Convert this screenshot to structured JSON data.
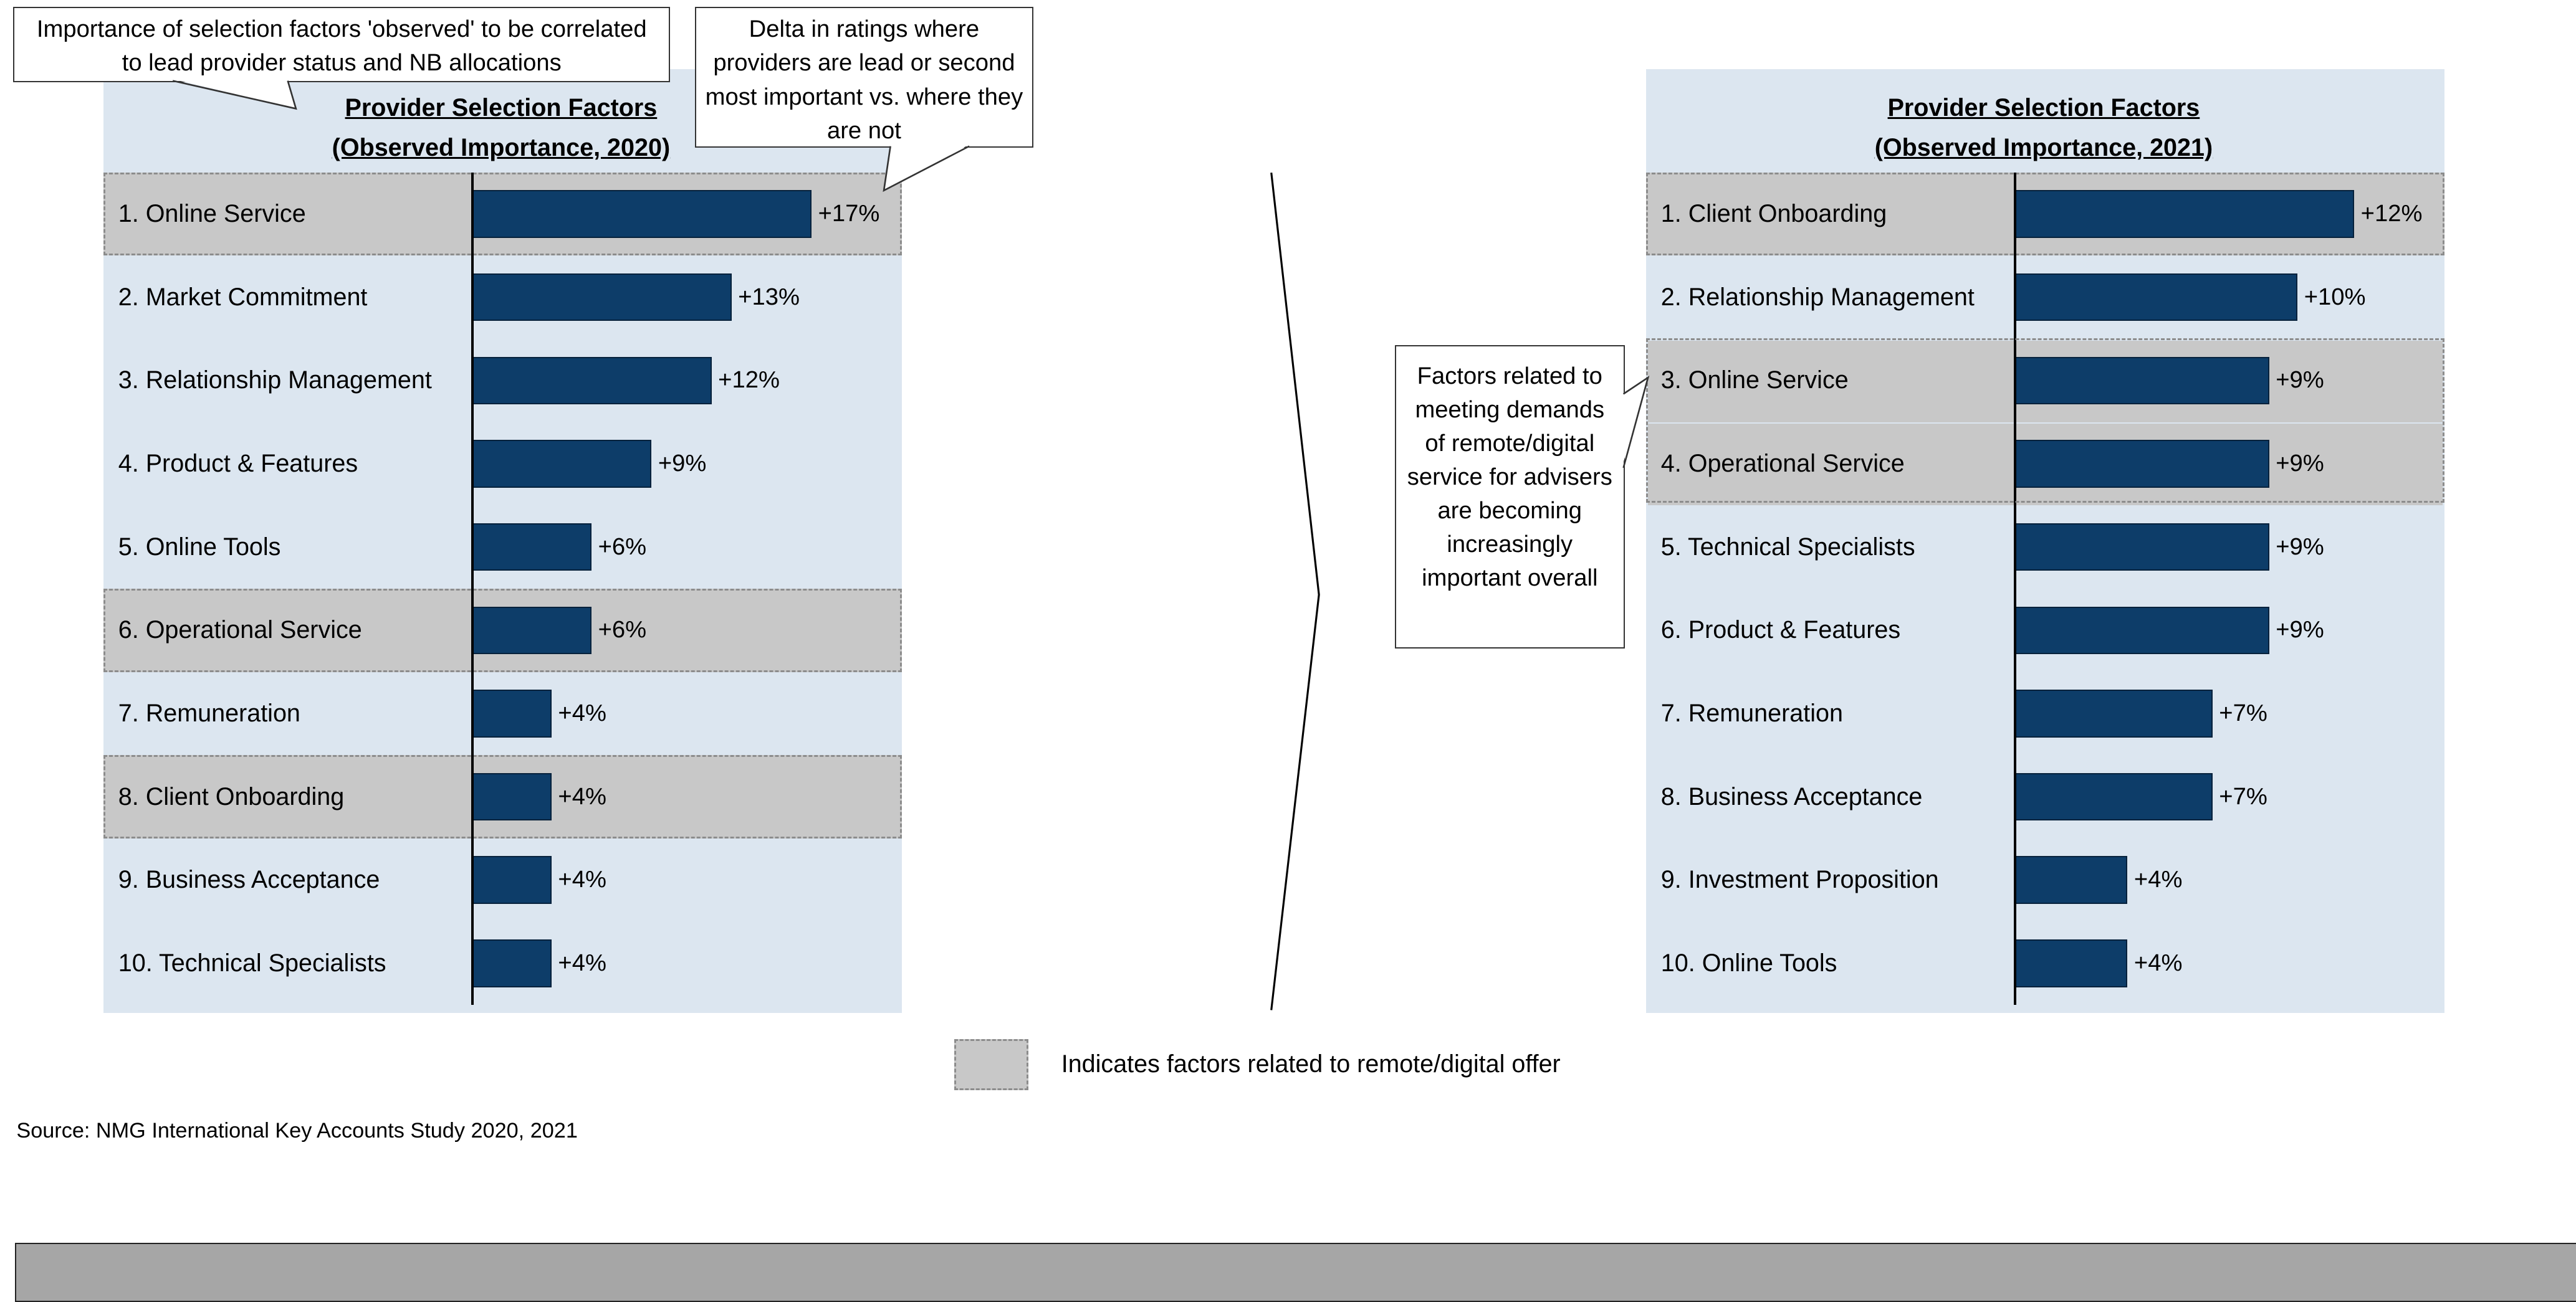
{
  "chart_data": [
    {
      "type": "bar",
      "orientation": "horizontal",
      "title": "Provider Selection Factors",
      "subtitle": "(Observed Importance, 2020)",
      "categories": [
        "1. Online Service",
        "2. Market Commitment",
        "3. Relationship Management",
        "4. Product & Features",
        "5. Online Tools",
        "6. Operational Service",
        "7. Remuneration",
        "8. Client Onboarding",
        "9. Business Acceptance",
        "10. Technical Specialists"
      ],
      "values": [
        17,
        13,
        12,
        9,
        6,
        6,
        4,
        4,
        4,
        4
      ],
      "labels": [
        "+17%",
        "+13%",
        "+12%",
        "+9%",
        "+6%",
        "+6%",
        "+4%",
        "+4%",
        "+4%",
        "+4%"
      ],
      "highlighted": [
        0,
        5,
        7
      ],
      "xlim": [
        0,
        17
      ],
      "bar_color": "#0d3d69"
    },
    {
      "type": "bar",
      "orientation": "horizontal",
      "title": "Provider Selection Factors",
      "subtitle": "(Observed Importance, 2021)",
      "categories": [
        "1. Client Onboarding",
        "2. Relationship Management",
        "3. Online Service",
        "4. Operational Service",
        "5. Technical Specialists",
        "6. Product & Features",
        "7. Remuneration",
        "8. Business Acceptance",
        "9. Investment Proposition",
        "10. Online Tools"
      ],
      "values": [
        12,
        10,
        9,
        9,
        9,
        9,
        7,
        7,
        4,
        4
      ],
      "labels": [
        "+12%",
        "+10%",
        "+9%",
        "+9%",
        "+9%",
        "+9%",
        "+7%",
        "+7%",
        "+4%",
        "+4%"
      ],
      "highlighted": [
        0,
        2,
        3
      ],
      "xlim": [
        0,
        12
      ],
      "bar_color": "#0d3d69"
    }
  ],
  "callouts": {
    "importance": "Importance of selection factors 'observed' to be correlated to lead provider status and NB allocations",
    "delta": "Delta in ratings where providers are lead or second most important vs. where they are not",
    "remote": "Factors related to meeting demands of remote/digital service for advisers are becoming increasingly important overall"
  },
  "legend": {
    "text": "Indicates factors related to remote/digital offer",
    "swatch_color": "#c8c8c8"
  },
  "source": "Source: NMG International Key Accounts Study 2020, 2021",
  "colors": {
    "panel": "#dce6f0",
    "highlight": "#c8c8c8",
    "bar": "#0d3d69",
    "footer": "#a6a6a6"
  }
}
